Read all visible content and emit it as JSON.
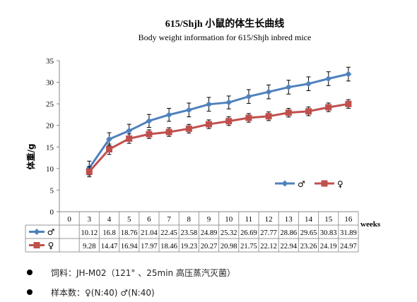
{
  "chart_data": {
    "type": "line",
    "title": "615/Shjh  小鼠的体生长曲线",
    "subtitle": "Body weight information for 615/Shjh inbred mice",
    "ylabel": "体重/g",
    "xlabel": "weeks",
    "ylim": [
      0,
      35
    ],
    "yticks": [
      0,
      5,
      10,
      15,
      20,
      25,
      30,
      35
    ],
    "categories": [
      "0",
      "3",
      "4",
      "5",
      "6",
      "7",
      "8",
      "9",
      "10",
      "11",
      "12",
      "13",
      "14",
      "15",
      "16"
    ],
    "grid": false,
    "legend_position": "right",
    "series": [
      {
        "name": "♂",
        "color": "#4F81BD",
        "marker": "diamond",
        "values": [
          null,
          10.12,
          16.8,
          18.76,
          21.04,
          22.45,
          23.58,
          24.89,
          25.32,
          26.69,
          27.77,
          28.86,
          29.65,
          30.83,
          31.89
        ],
        "errors": [
          null,
          1.6,
          1.5,
          1.5,
          1.5,
          1.5,
          1.6,
          1.6,
          1.5,
          1.6,
          1.6,
          1.6,
          1.6,
          1.6,
          1.6
        ],
        "labels": [
          "",
          "10.12",
          "16.8",
          "18.76",
          "21.04",
          "22.45",
          "23.58",
          "24.89",
          "25.32",
          "26.69",
          "27.77",
          "28.86",
          "29.65",
          "30.83",
          "31.89"
        ]
      },
      {
        "name": "♀",
        "color": "#C0504D",
        "marker": "square",
        "values": [
          null,
          9.28,
          14.47,
          16.94,
          17.97,
          18.46,
          19.23,
          20.27,
          20.98,
          21.75,
          22.12,
          22.94,
          23.26,
          24.19,
          24.97
        ],
        "errors": [
          null,
          1.2,
          1.2,
          1.1,
          1.0,
          1.0,
          1.0,
          1.0,
          1.0,
          1.0,
          1.0,
          1.0,
          1.0,
          1.0,
          1.0
        ],
        "labels": [
          "",
          "9.28",
          "14.47",
          "16.94",
          "17.97",
          "18.46",
          "19.23",
          "20.27",
          "20.98",
          "21.75",
          "22.12",
          "22.94",
          "23.26",
          "24.19",
          "24.97"
        ]
      }
    ]
  },
  "notes": [
    {
      "text": "饲料：JH-M02（121°  、25min 高压蒸汽灭菌）"
    },
    {
      "text": "样本数：♀(N:40)  ♂(N:40)"
    }
  ]
}
